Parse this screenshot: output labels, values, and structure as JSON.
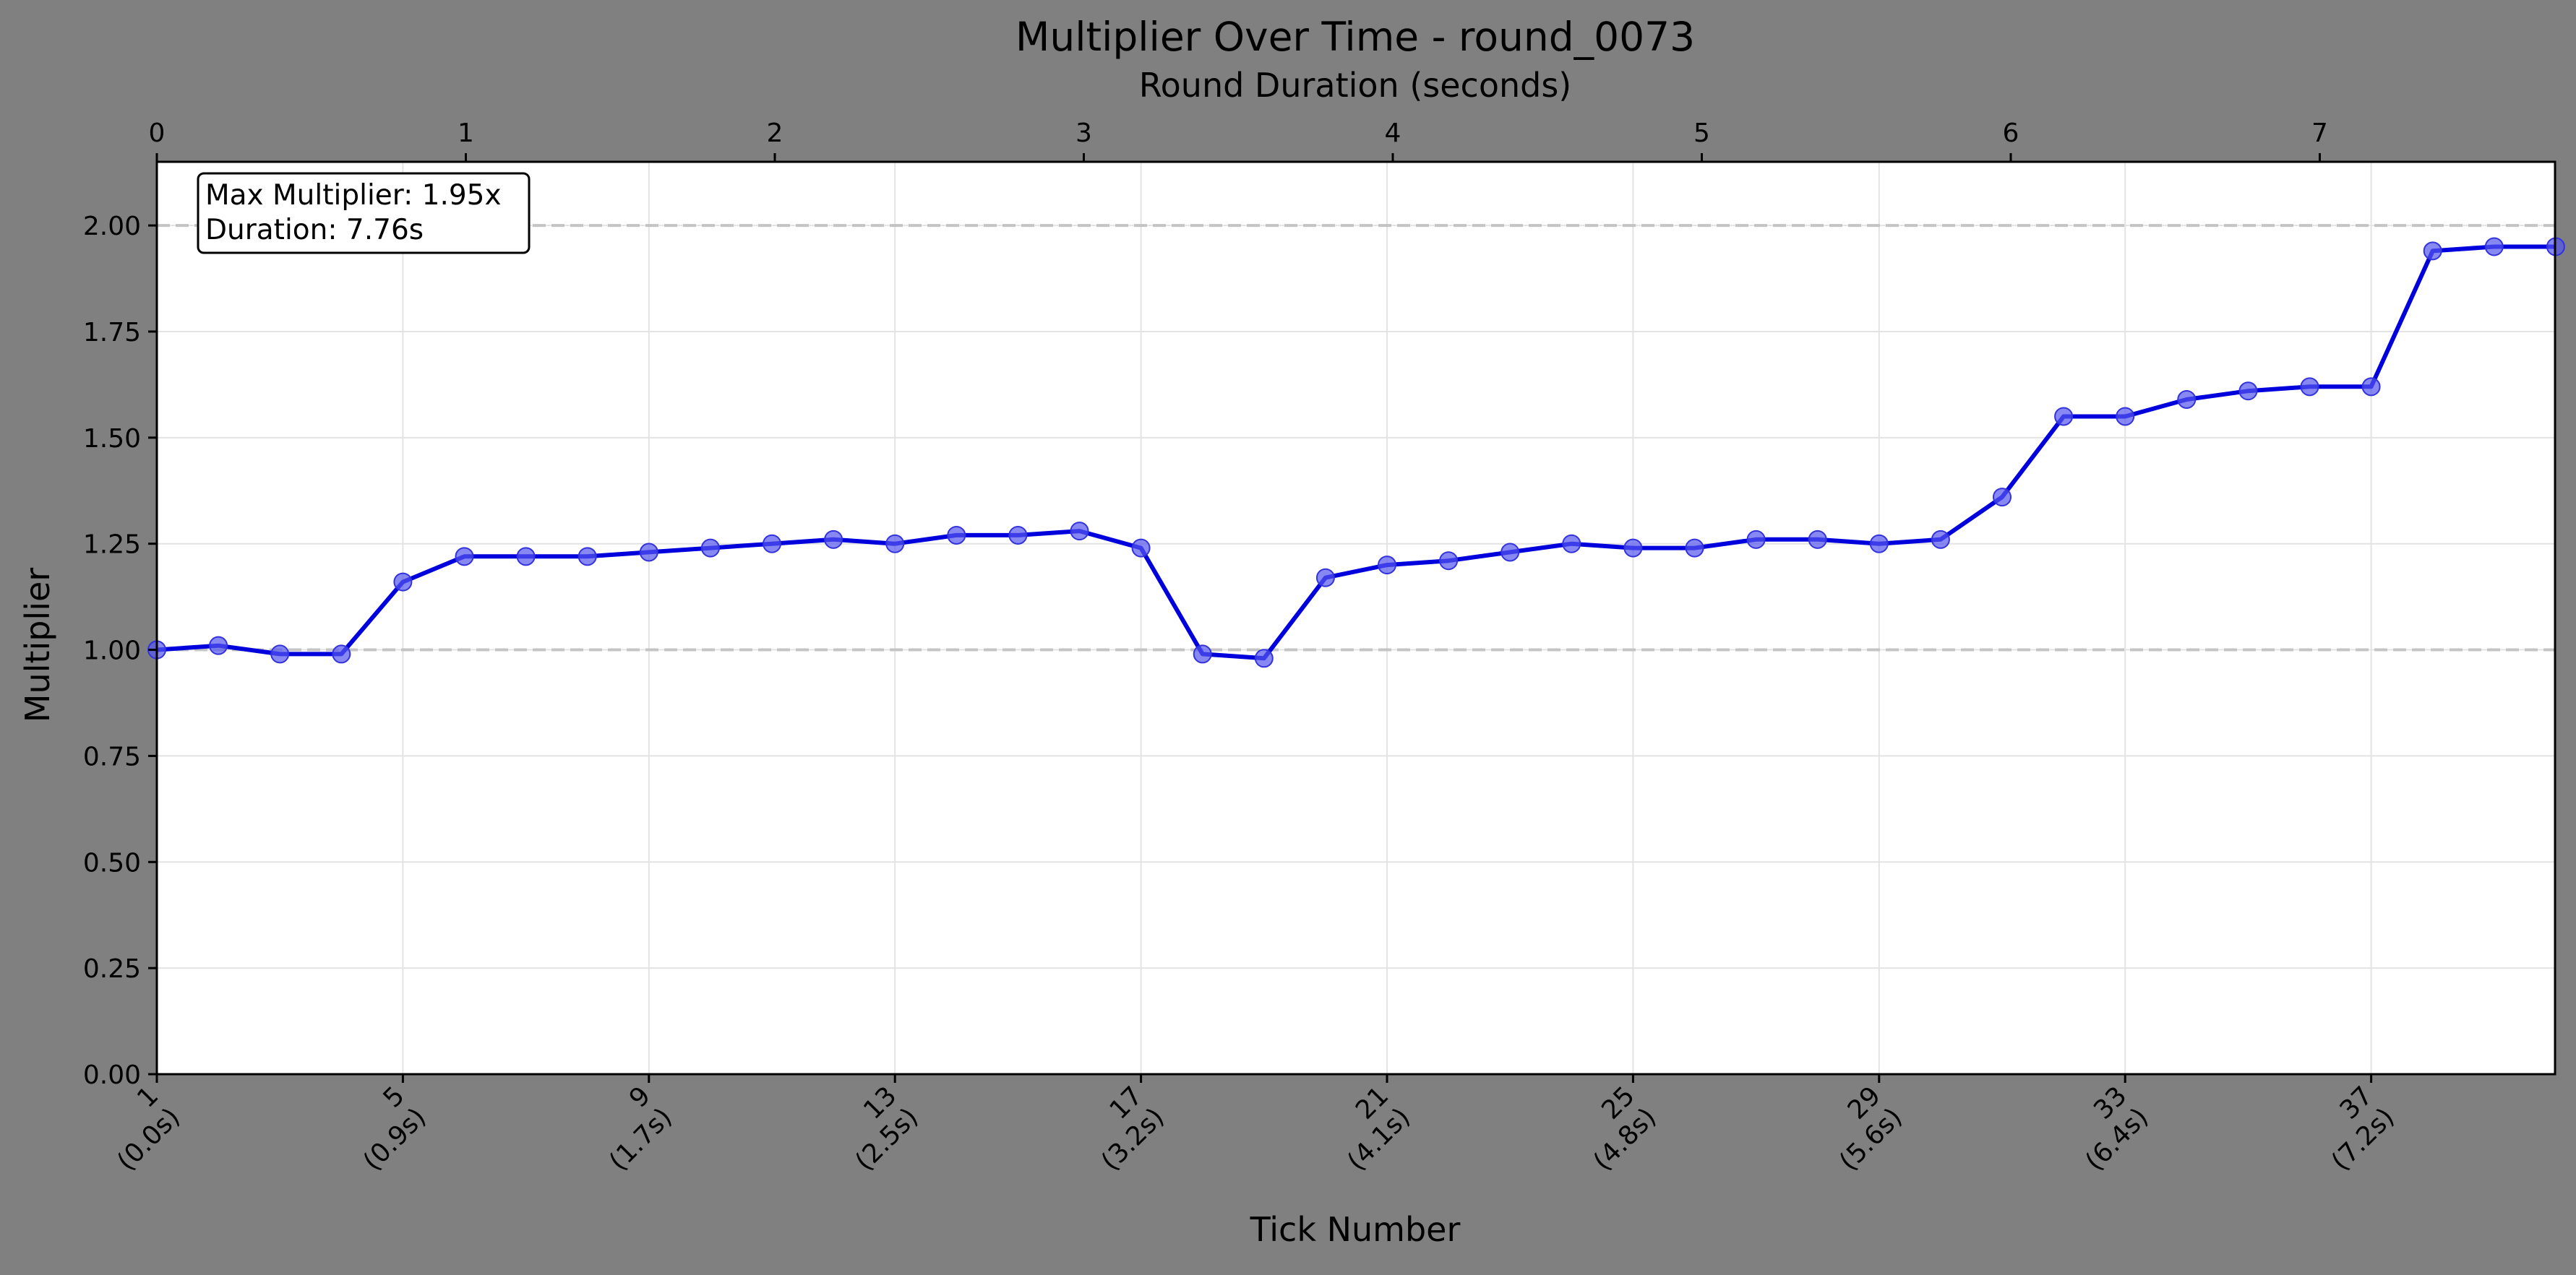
{
  "chart_data": {
    "type": "line",
    "title": "Multiplier Over Time - round_0073",
    "xlabel": "Tick Number",
    "ylabel": "Multiplier",
    "x2label": "Round Duration (seconds)",
    "x": [
      1,
      2,
      3,
      4,
      5,
      6,
      7,
      8,
      9,
      10,
      11,
      12,
      13,
      14,
      15,
      16,
      17,
      18,
      19,
      20,
      21,
      22,
      23,
      24,
      25,
      26,
      27,
      28,
      29,
      30,
      31,
      32,
      33,
      34,
      35,
      36,
      37,
      38,
      39,
      40
    ],
    "series": [
      {
        "values": [
          1.0,
          1.01,
          0.99,
          0.99,
          1.16,
          1.22,
          1.22,
          1.22,
          1.23,
          1.24,
          1.25,
          1.26,
          1.25,
          1.27,
          1.27,
          1.28,
          1.24,
          0.99,
          0.98,
          1.17,
          1.2,
          1.21,
          1.23,
          1.25,
          1.24,
          1.24,
          1.26,
          1.26,
          1.25,
          1.26,
          1.36,
          1.55,
          1.55,
          1.59,
          1.61,
          1.62,
          1.62,
          1.94,
          1.95,
          1.95
        ],
        "color": "#0000dd"
      }
    ],
    "xlim": [
      1,
      40
    ],
    "ylim": [
      0.0,
      2.15
    ],
    "x2lim": [
      0,
      7.76
    ],
    "yticks": [
      "0.00",
      "0.25",
      "0.50",
      "0.75",
      "1.00",
      "1.25",
      "1.50",
      "1.75",
      "2.00"
    ],
    "ytick_values": [
      0,
      0.25,
      0.5,
      0.75,
      1.0,
      1.25,
      1.5,
      1.75,
      2.0
    ],
    "xtick_values": [
      1,
      5,
      9,
      13,
      17,
      21,
      25,
      29,
      33,
      37
    ],
    "xtick_labels": [
      [
        "1",
        "(0.0s)"
      ],
      [
        "5",
        "(0.9s)"
      ],
      [
        "9",
        "(1.7s)"
      ],
      [
        "13",
        "(2.5s)"
      ],
      [
        "17",
        "(3.2s)"
      ],
      [
        "21",
        "(4.1s)"
      ],
      [
        "25",
        "(4.8s)"
      ],
      [
        "29",
        "(5.6s)"
      ],
      [
        "33",
        "(6.4s)"
      ],
      [
        "37",
        "(7.2s)"
      ]
    ],
    "x2tick_values": [
      0,
      1,
      2,
      3,
      4,
      5,
      6,
      7
    ],
    "x2tick_labels": [
      "0",
      "1",
      "2",
      "3",
      "4",
      "5",
      "6",
      "7"
    ],
    "reference_lines": [
      1.0,
      2.0
    ],
    "grid": true,
    "annotation": [
      "Max Multiplier: 1.95x",
      "Duration: 7.76s"
    ],
    "annotation_placement": "top-left"
  }
}
